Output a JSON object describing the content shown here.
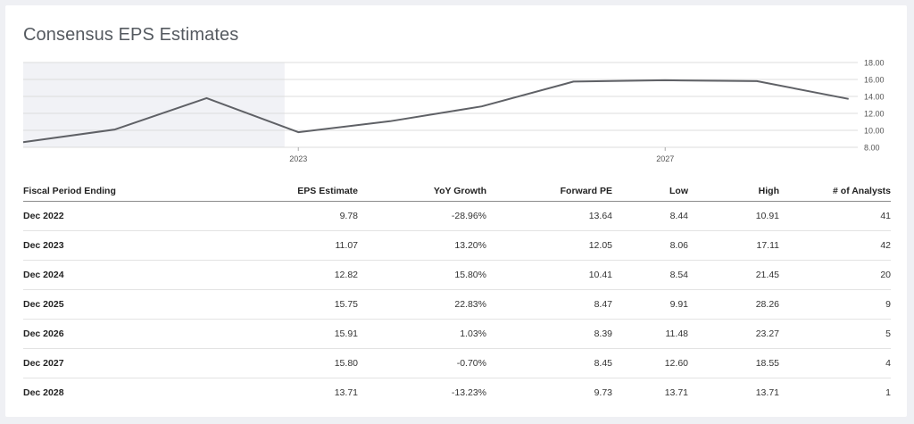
{
  "card": {
    "title": "Consensus EPS Estimates"
  },
  "chart_data": {
    "type": "line",
    "title": "Consensus EPS Estimates",
    "series": [
      {
        "x": [
          2020.0,
          2021.0,
          2022.0,
          2023.0,
          2024.0,
          2025.0,
          2026.0,
          2027.0,
          2028.0,
          2029.0
        ],
        "y": [
          8.6,
          10.1,
          13.8,
          9.78,
          11.07,
          12.82,
          15.75,
          15.91,
          15.8,
          13.71
        ]
      }
    ],
    "xticks": [
      2023,
      2027
    ],
    "xtick_labels": [
      "2023",
      "2027"
    ],
    "yticks": [
      8,
      10,
      12,
      14,
      16,
      18
    ],
    "ytick_labels": [
      "8.00",
      "10.00",
      "12.00",
      "14.00",
      "16.00",
      "18.00"
    ],
    "ylim": [
      8,
      18
    ],
    "xlim": [
      2020,
      2029.1
    ],
    "shaded_region": {
      "x_start": 2020,
      "x_end": 2022.85
    },
    "grid": true,
    "line_color": "#5f6166",
    "shade_color": "#f1f2f6",
    "grid_color": "#dcdcdc"
  },
  "table": {
    "headers": [
      "Fiscal Period Ending",
      "EPS Estimate",
      "YoY Growth",
      "Forward PE",
      "Low",
      "High",
      "# of Analysts"
    ],
    "rows": [
      [
        "Dec 2022",
        "9.78",
        "-28.96%",
        "13.64",
        "8.44",
        "10.91",
        "41"
      ],
      [
        "Dec 2023",
        "11.07",
        "13.20%",
        "12.05",
        "8.06",
        "17.11",
        "42"
      ],
      [
        "Dec 2024",
        "12.82",
        "15.80%",
        "10.41",
        "8.54",
        "21.45",
        "20"
      ],
      [
        "Dec 2025",
        "15.75",
        "22.83%",
        "8.47",
        "9.91",
        "28.26",
        "9"
      ],
      [
        "Dec 2026",
        "15.91",
        "1.03%",
        "8.39",
        "11.48",
        "23.27",
        "5"
      ],
      [
        "Dec 2027",
        "15.80",
        "-0.70%",
        "8.45",
        "12.60",
        "18.55",
        "4"
      ],
      [
        "Dec 2028",
        "13.71",
        "-13.23%",
        "9.73",
        "13.71",
        "13.71",
        "1"
      ]
    ]
  }
}
